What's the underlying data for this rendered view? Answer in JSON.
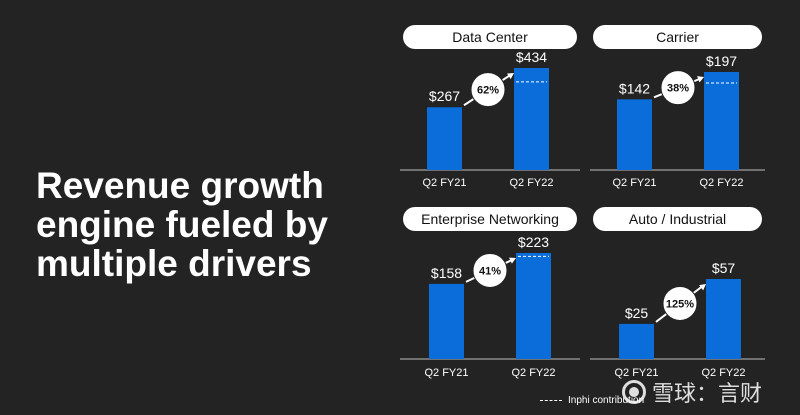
{
  "headline": "Revenue growth engine fueled by multiple drivers",
  "colors": {
    "background": "#222322",
    "bar": "#0a6dd9",
    "pill": "#ffffff",
    "text": "#ffffff"
  },
  "legend_label": "Inphi contribution",
  "watermark": "雪球：言财",
  "chart_data": [
    {
      "type": "bar",
      "title": "Data Center",
      "categories": [
        "Q2 FY21",
        "Q2 FY22"
      ],
      "values": [
        267,
        434
      ],
      "value_labels": [
        "$267",
        "$434"
      ],
      "growth_label": "62%",
      "inphi_contribution_level": 375
    },
    {
      "type": "bar",
      "title": "Carrier",
      "categories": [
        "Q2 FY21",
        "Q2 FY22"
      ],
      "values": [
        142,
        197
      ],
      "value_labels": [
        "$142",
        "$197"
      ],
      "growth_label": "38%",
      "inphi_contribution_level": 175
    },
    {
      "type": "bar",
      "title": "Enterprise Networking",
      "categories": [
        "Q2 FY21",
        "Q2 FY22"
      ],
      "values": [
        158,
        223
      ],
      "value_labels": [
        "$158",
        "$223"
      ],
      "growth_label": "41%",
      "inphi_contribution_level": 216
    },
    {
      "type": "bar",
      "title": "Auto / Industrial",
      "categories": [
        "Q2 FY21",
        "Q2 FY22"
      ],
      "values": [
        25,
        57
      ],
      "value_labels": [
        "$25",
        "$57"
      ],
      "growth_label": "125%",
      "inphi_contribution_level": null
    }
  ]
}
